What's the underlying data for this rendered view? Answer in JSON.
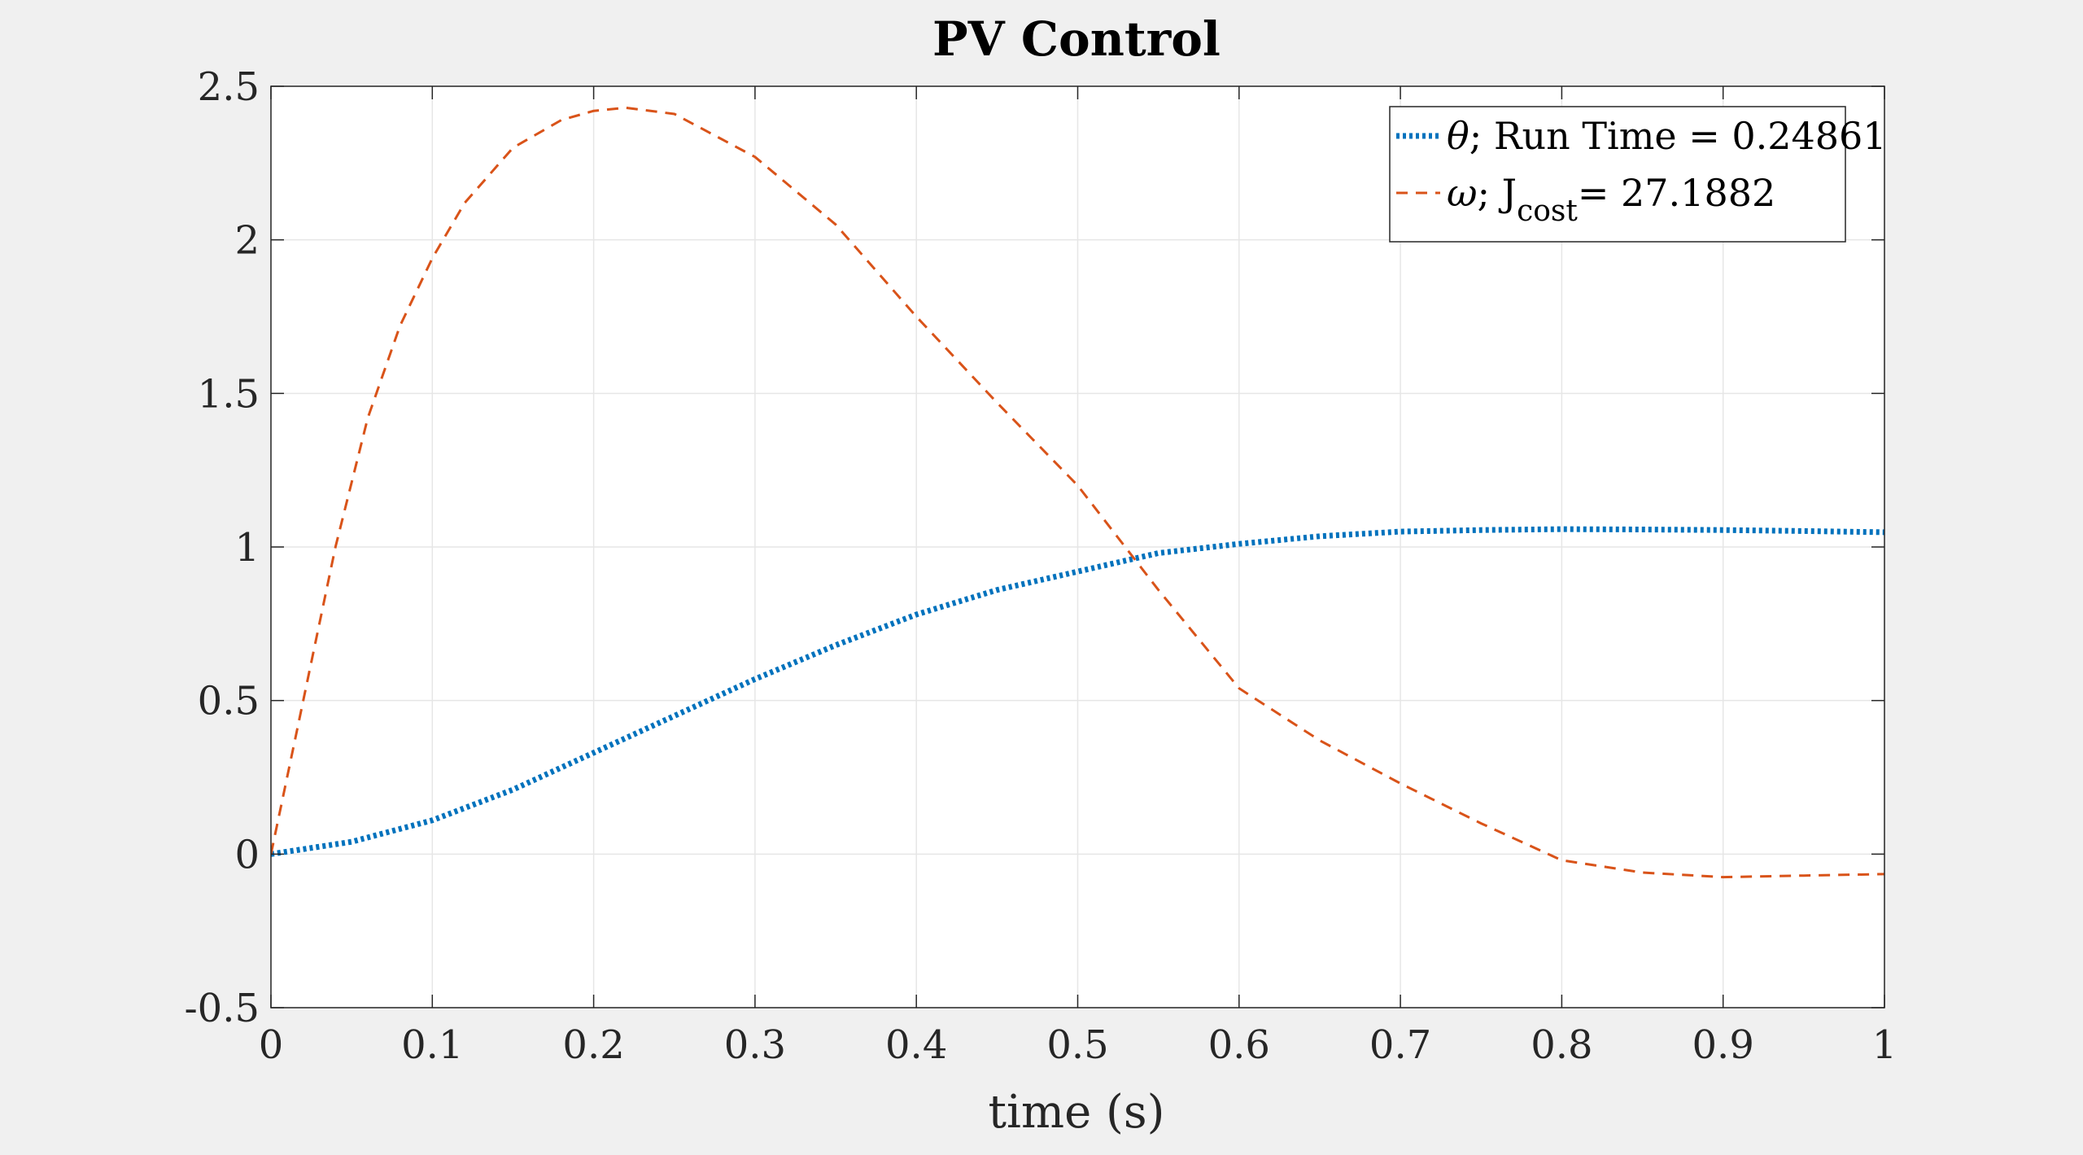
{
  "chart_data": {
    "type": "line",
    "title": "PV Control",
    "xlabel": "time (s)",
    "ylabel": "",
    "xlim": [
      0,
      1
    ],
    "ylim": [
      -0.5,
      2.5
    ],
    "grid": true,
    "legend_position": "top-right",
    "xticks": [
      "0",
      "0.1",
      "0.2",
      "0.3",
      "0.4",
      "0.5",
      "0.6",
      "0.7",
      "0.8",
      "0.9",
      "1"
    ],
    "yticks": [
      "-0.5",
      "0",
      "0.5",
      "1",
      "1.5",
      "2",
      "2.5"
    ],
    "xtick_values": [
      0,
      0.1,
      0.2,
      0.3,
      0.4,
      0.5,
      0.6,
      0.7,
      0.8,
      0.9,
      1.0
    ],
    "ytick_values": [
      -0.5,
      0,
      0.5,
      1,
      1.5,
      2,
      2.5
    ],
    "series": [
      {
        "name": "θ; Run Time = 0.24861",
        "legend_symbol": "θ",
        "legend_rest": "; Run Time = 0.24861",
        "color": "#0072BD",
        "style": "dotted",
        "x": [
          0,
          0.05,
          0.1,
          0.15,
          0.2,
          0.25,
          0.3,
          0.35,
          0.4,
          0.45,
          0.5,
          0.55,
          0.6,
          0.65,
          0.7,
          0.75,
          0.8,
          0.85,
          0.9,
          0.95,
          1.0
        ],
        "y": [
          0,
          0.04,
          0.11,
          0.21,
          0.33,
          0.45,
          0.57,
          0.68,
          0.78,
          0.86,
          0.92,
          0.98,
          1.01,
          1.035,
          1.05,
          1.055,
          1.058,
          1.057,
          1.055,
          1.052,
          1.048
        ]
      },
      {
        "name": "ω; Jcost= 27.1882",
        "legend_symbol": "ω",
        "legend_rest": "; J",
        "legend_sub": "cost",
        "legend_tail": "= 27.1882",
        "color": "#D95319",
        "style": "dashed",
        "x": [
          0,
          0.02,
          0.04,
          0.06,
          0.08,
          0.1,
          0.12,
          0.15,
          0.18,
          0.2,
          0.22,
          0.25,
          0.3,
          0.35,
          0.4,
          0.45,
          0.5,
          0.55,
          0.6,
          0.65,
          0.7,
          0.75,
          0.8,
          0.85,
          0.9,
          0.95,
          1.0
        ],
        "y": [
          0,
          0.5,
          1.0,
          1.42,
          1.72,
          1.94,
          2.12,
          2.3,
          2.39,
          2.42,
          2.43,
          2.41,
          2.27,
          2.05,
          1.75,
          1.47,
          1.2,
          0.86,
          0.54,
          0.37,
          0.23,
          0.1,
          -0.02,
          -0.06,
          -0.075,
          -0.07,
          -0.065
        ]
      }
    ]
  }
}
